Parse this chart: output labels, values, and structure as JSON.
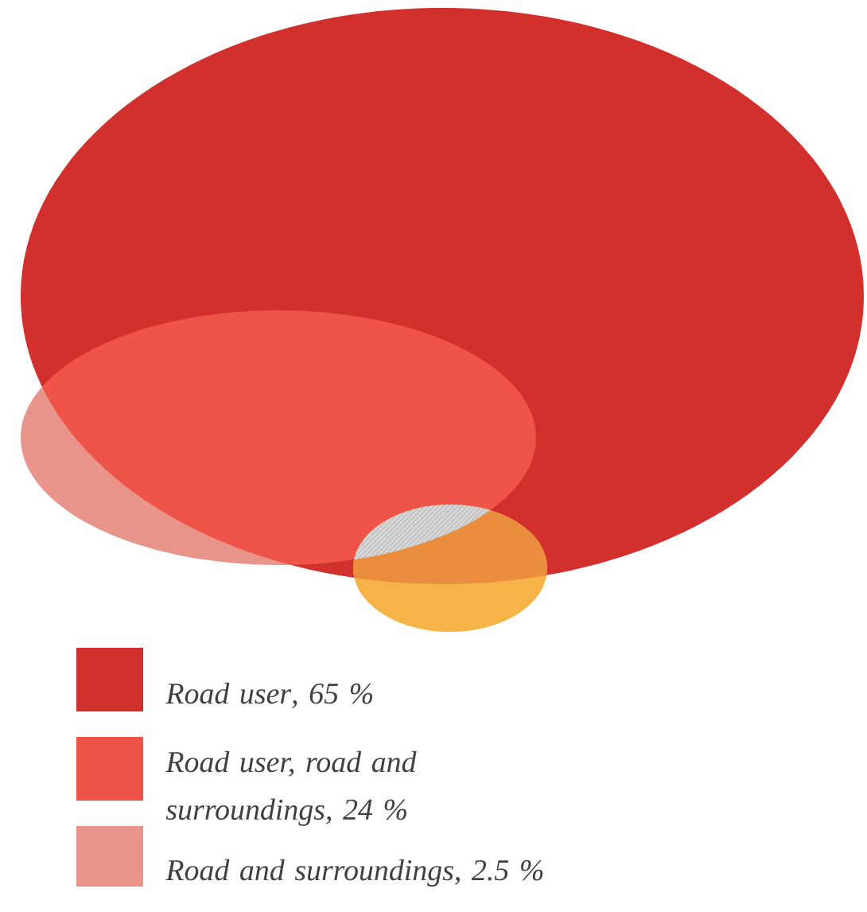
{
  "chart_data": {
    "type": "other",
    "categories": [
      "Road user",
      "Road user, road and surroundings",
      "Road and surroundings",
      null,
      null
    ],
    "value_labels": [
      ", 65 %",
      ", 24 %",
      ", 2.5 %",
      null,
      null
    ],
    "values": [
      65,
      24,
      2.5,
      null,
      null
    ],
    "colors": [
      "#d1302c",
      "#ee5448",
      "#e8948a",
      "#f6b448",
      "#9a9a9a"
    ]
  }
}
